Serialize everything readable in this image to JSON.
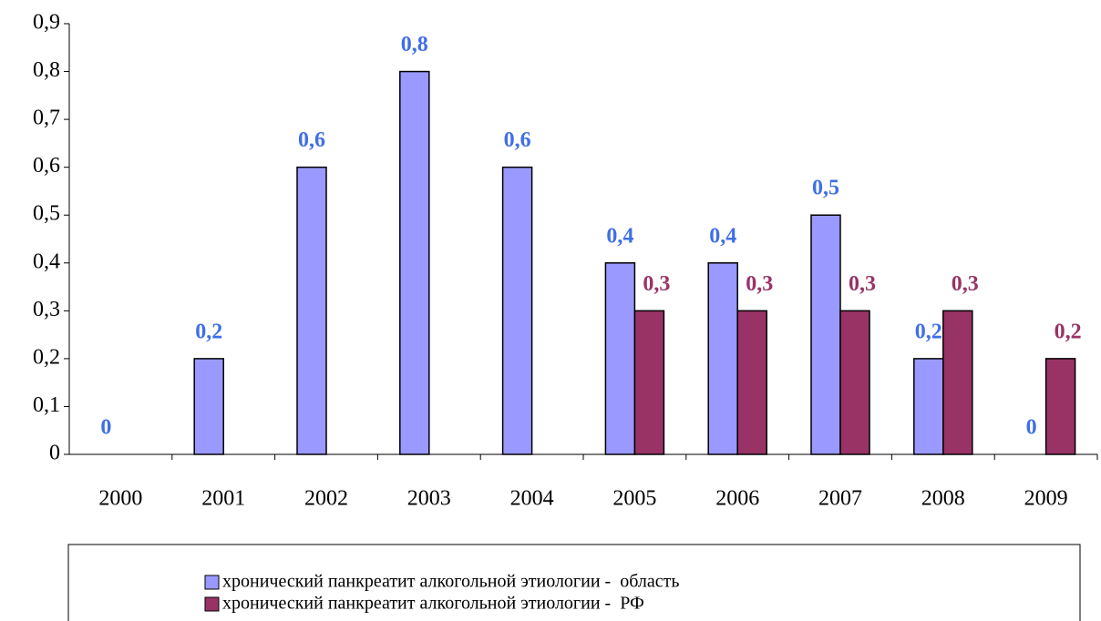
{
  "chart_data": {
    "type": "bar",
    "categories": [
      "2000",
      "2001",
      "2002",
      "2003",
      "2004",
      "2005",
      "2006",
      "2007",
      "2008",
      "2009"
    ],
    "series": [
      {
        "name": "хронический панкреатит алкогольной этиологии -  область",
        "color": "#9999ff",
        "label_color": "#3f6fe8",
        "values": [
          0,
          0.2,
          0.6,
          0.8,
          0.6,
          0.4,
          0.4,
          0.5,
          0.2,
          0
        ],
        "value_labels": [
          "0",
          "0,2",
          "0,6",
          "0,8",
          "0,6",
          "0,4",
          "0,4",
          "0,5",
          "0,2",
          "0"
        ]
      },
      {
        "name": "хронический панкреатит алкогольной этиологии -  РФ",
        "color": "#993366",
        "label_color": "#993366",
        "values": [
          null,
          null,
          null,
          null,
          null,
          0.3,
          0.3,
          0.3,
          0.3,
          0.2
        ],
        "value_labels": [
          null,
          null,
          null,
          null,
          null,
          "0,3",
          "0,3",
          "0,3",
          "0,3",
          "0,2"
        ]
      }
    ],
    "ylim": [
      0,
      0.9
    ],
    "yticks": [
      0,
      {
        "value": 0.1,
        "label": "0,1"
      },
      {
        "value": 0.2,
        "label": "0,2"
      },
      {
        "value": 0.3,
        "label": "0,3"
      },
      {
        "value": 0.4,
        "label": "0,4"
      },
      {
        "value": 0.5,
        "label": "0,5"
      },
      {
        "value": 0.6,
        "label": "0,6"
      },
      {
        "value": 0.7,
        "label": "0,7"
      },
      {
        "value": 0.8,
        "label": "0,8"
      },
      {
        "value": 0.9,
        "label": "0,9"
      }
    ],
    "grid": false
  }
}
